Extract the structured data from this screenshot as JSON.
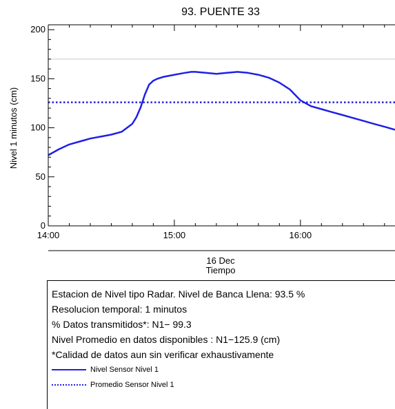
{
  "chart_data": {
    "type": "line",
    "title": "93. PUENTE 33",
    "xlabel": "Tiempo",
    "xlabel_date": "16 Dec",
    "ylabel": "Nivel 1 minutos (cm)",
    "xlim": [
      "14:00",
      "16:45"
    ],
    "ylim": [
      0,
      205
    ],
    "x_ticks": [
      "14:00",
      "15:00",
      "16:00"
    ],
    "y_ticks": [
      0,
      50,
      100,
      150,
      200
    ],
    "grid": false,
    "reference_line": {
      "value": 170,
      "color": "#c8c8c8"
    },
    "series": [
      {
        "name": "Nivel Sensor Nivel 1",
        "style": "solid",
        "color": "#1f1fe6",
        "x": [
          "14:00",
          "14:05",
          "14:10",
          "14:15",
          "14:20",
          "14:25",
          "14:30",
          "14:35",
          "14:40",
          "14:42",
          "14:44",
          "14:46",
          "14:48",
          "14:50",
          "14:52",
          "14:55",
          "15:00",
          "15:05",
          "15:08",
          "15:10",
          "15:15",
          "15:20",
          "15:25",
          "15:30",
          "15:35",
          "15:40",
          "15:45",
          "15:50",
          "15:55",
          "16:00",
          "16:05",
          "16:10",
          "16:15",
          "16:20",
          "16:25",
          "16:30",
          "16:35",
          "16:40",
          "16:45"
        ],
        "values": [
          72,
          78,
          83,
          86,
          89,
          91,
          93,
          96,
          104,
          111,
          121,
          134,
          144,
          148,
          150,
          152,
          154,
          156,
          157,
          157,
          156,
          155,
          156,
          157,
          156,
          154,
          151,
          146,
          139,
          128,
          122,
          119,
          116,
          113,
          110,
          107,
          104,
          101,
          98
        ]
      },
      {
        "name": "Promedio Sensor Nivel 1",
        "style": "dotted",
        "color": "#1f1fe6",
        "value": 125.9
      }
    ]
  },
  "info": {
    "line1": "Estacion de Nivel tipo Radar. Nivel de Banca Llena: 93.5 %",
    "line2": "Resolucion temporal: 1 minutos",
    "line3": "% Datos transmitidos*: N1− 99.3",
    "line4": "Nivel Promedio en datos disponibles : N1−125.9 (cm)",
    "line5": "*Calidad de datos aun sin verificar exhaustivamente",
    "legend": [
      {
        "label": "Nivel Sensor Nivel 1",
        "style": "solid"
      },
      {
        "label": "Promedio Sensor Nivel 1",
        "style": "dotted"
      }
    ]
  }
}
